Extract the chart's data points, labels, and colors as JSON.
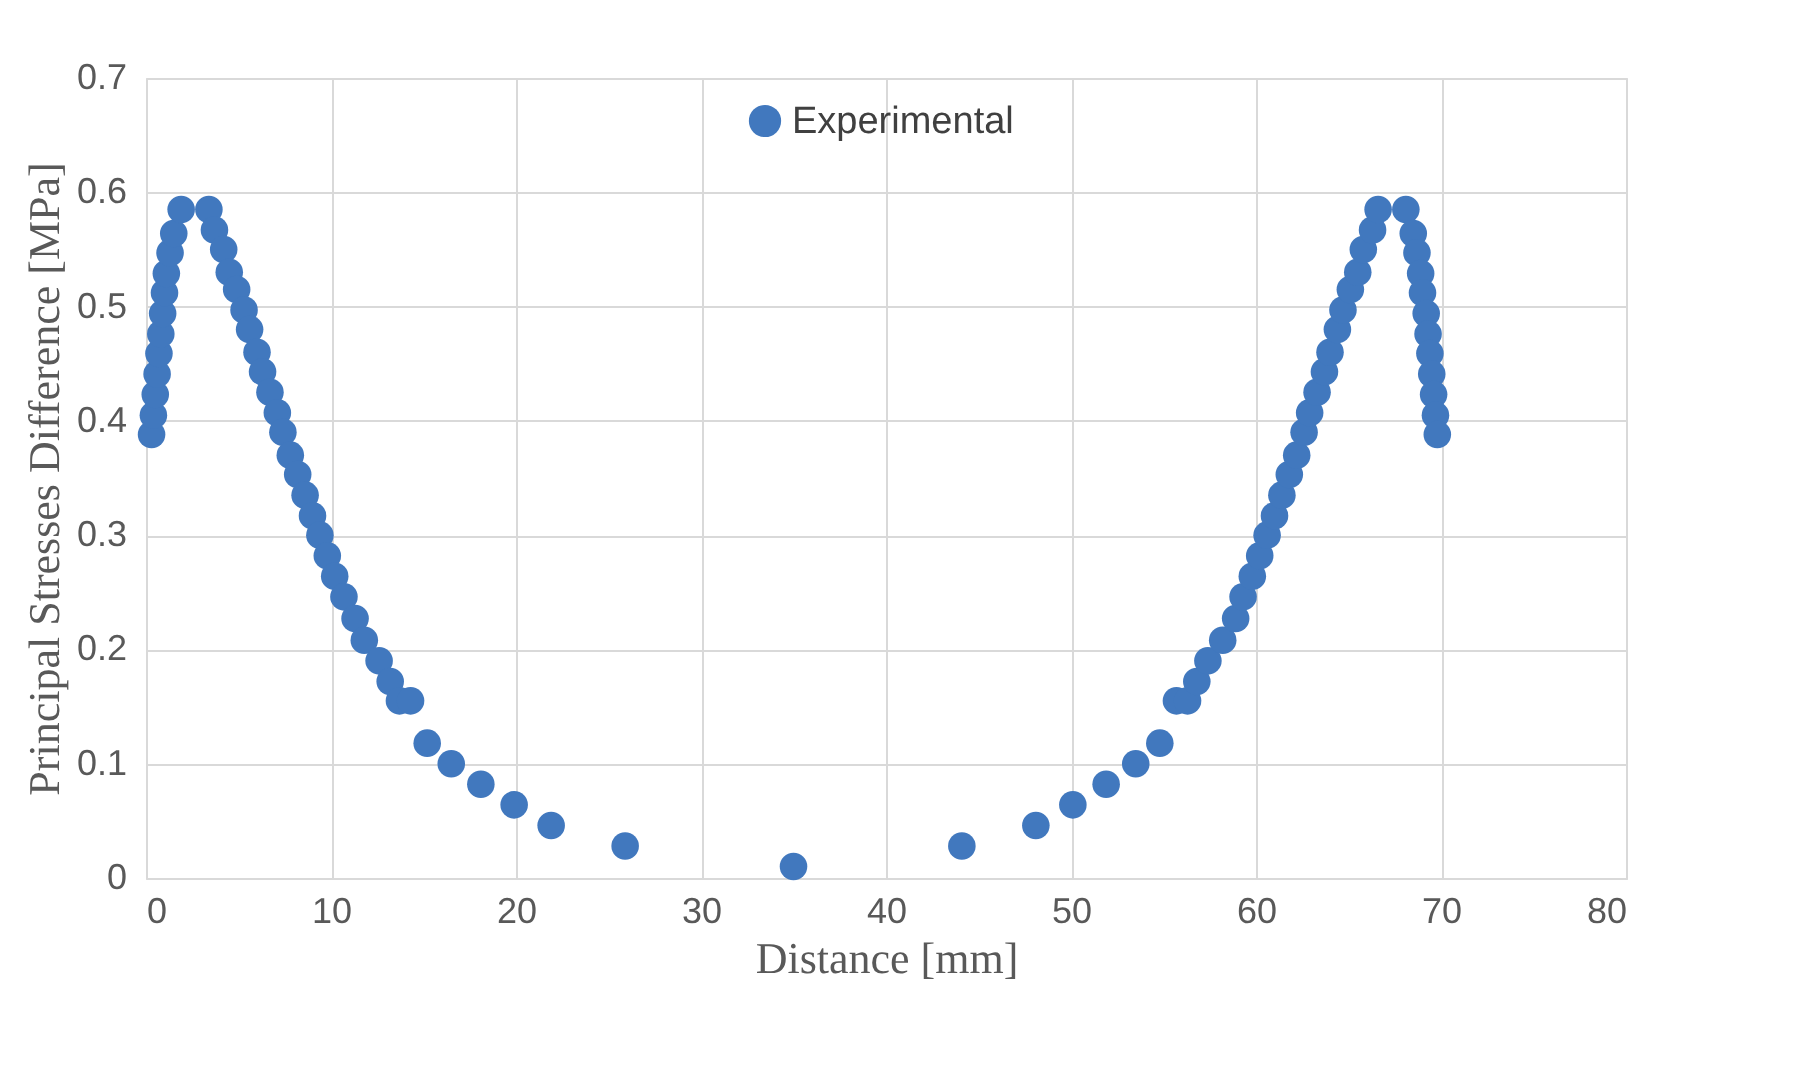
{
  "chart_data": {
    "type": "scatter",
    "xlabel": "Distance [mm]",
    "ylabel": "Principal Stresses Difference [MPa]",
    "xlim": [
      0,
      80
    ],
    "xticks": [
      0,
      10,
      20,
      30,
      40,
      50,
      60,
      70,
      80
    ],
    "ylim": [
      0,
      0.7
    ],
    "yticks": [
      0,
      0.1,
      0.2,
      0.3,
      0.4,
      0.5,
      0.6,
      0.7
    ],
    "grid": true,
    "legend": "top",
    "marker": "circle",
    "series": [
      {
        "name": "Experimental",
        "color": "#4178be",
        "x": [
          0.3,
          0.4,
          0.5,
          0.6,
          0.7,
          0.8,
          0.9,
          1.0,
          1.1,
          1.3,
          1.5,
          1.9,
          3.4,
          3.7,
          4.2,
          4.5,
          4.9,
          5.3,
          5.6,
          6.0,
          6.3,
          6.7,
          7.1,
          7.4,
          7.8,
          8.2,
          8.6,
          9.0,
          9.4,
          9.8,
          10.2,
          10.7,
          11.3,
          11.8,
          12.6,
          13.2,
          13.7,
          14.3,
          15.2,
          16.5,
          18.1,
          19.9,
          21.9,
          25.9,
          35.0,
          44.1,
          48.1,
          50.1,
          51.9,
          53.5,
          54.8,
          55.7,
          56.3,
          56.8,
          57.4,
          58.2,
          58.9,
          59.3,
          59.8,
          60.2,
          60.6,
          61.0,
          61.4,
          61.8,
          62.2,
          62.6,
          62.9,
          63.3,
          63.7,
          64.0,
          64.4,
          64.7,
          65.1,
          65.5,
          65.8,
          66.3,
          66.6,
          68.1,
          68.5,
          68.7,
          68.9,
          69.0,
          69.2,
          69.3,
          69.4,
          69.5,
          69.6,
          69.7,
          69.8
        ],
        "values": [
          0.388,
          0.405,
          0.423,
          0.441,
          0.459,
          0.476,
          0.494,
          0.512,
          0.529,
          0.547,
          0.564,
          0.585,
          0.585,
          0.567,
          0.55,
          0.53,
          0.515,
          0.497,
          0.48,
          0.46,
          0.443,
          0.425,
          0.407,
          0.39,
          0.37,
          0.353,
          0.335,
          0.317,
          0.3,
          0.282,
          0.264,
          0.246,
          0.227,
          0.208,
          0.19,
          0.172,
          0.155,
          0.155,
          0.118,
          0.1,
          0.082,
          0.064,
          0.046,
          0.028,
          0.01,
          0.028,
          0.046,
          0.064,
          0.082,
          0.1,
          0.118,
          0.155,
          0.155,
          0.172,
          0.19,
          0.208,
          0.227,
          0.246,
          0.264,
          0.282,
          0.3,
          0.317,
          0.335,
          0.353,
          0.37,
          0.39,
          0.407,
          0.425,
          0.443,
          0.46,
          0.48,
          0.497,
          0.515,
          0.53,
          0.55,
          0.567,
          0.585,
          0.585,
          0.564,
          0.547,
          0.529,
          0.512,
          0.494,
          0.476,
          0.459,
          0.441,
          0.423,
          0.405,
          0.388
        ]
      }
    ]
  }
}
